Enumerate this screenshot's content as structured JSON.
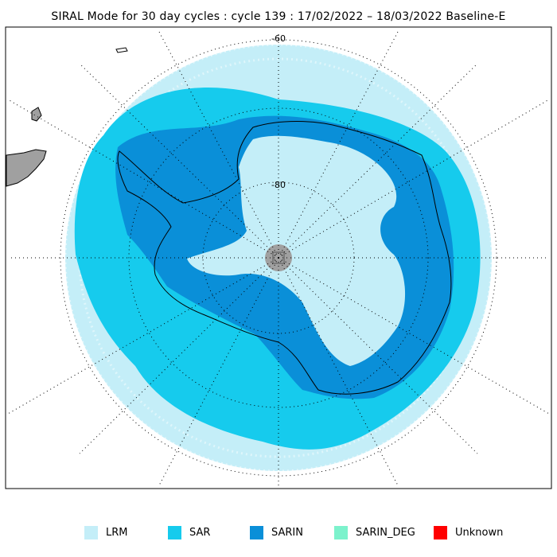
{
  "title": "SIRAL Mode for 30 day cycles : cycle 139 : 17/02/2022 – 18/03/2022 Baseline-E",
  "map": {
    "projection": "south-polar-stereographic",
    "latitude_labels": [
      "-60",
      "-80"
    ],
    "pole_hole_color": "#a0a0a0",
    "land_color": "#a0a0a0",
    "graticule": "dotted"
  },
  "legend": [
    {
      "label": "LRM",
      "color": "#c4eef8"
    },
    {
      "label": "SAR",
      "color": "#16cbed"
    },
    {
      "label": "SARIN",
      "color": "#0a8fd8"
    },
    {
      "label": "SARIN_DEG",
      "color": "#7cf2cc"
    },
    {
      "label": "Unknown",
      "color": "#ff0000"
    }
  ]
}
